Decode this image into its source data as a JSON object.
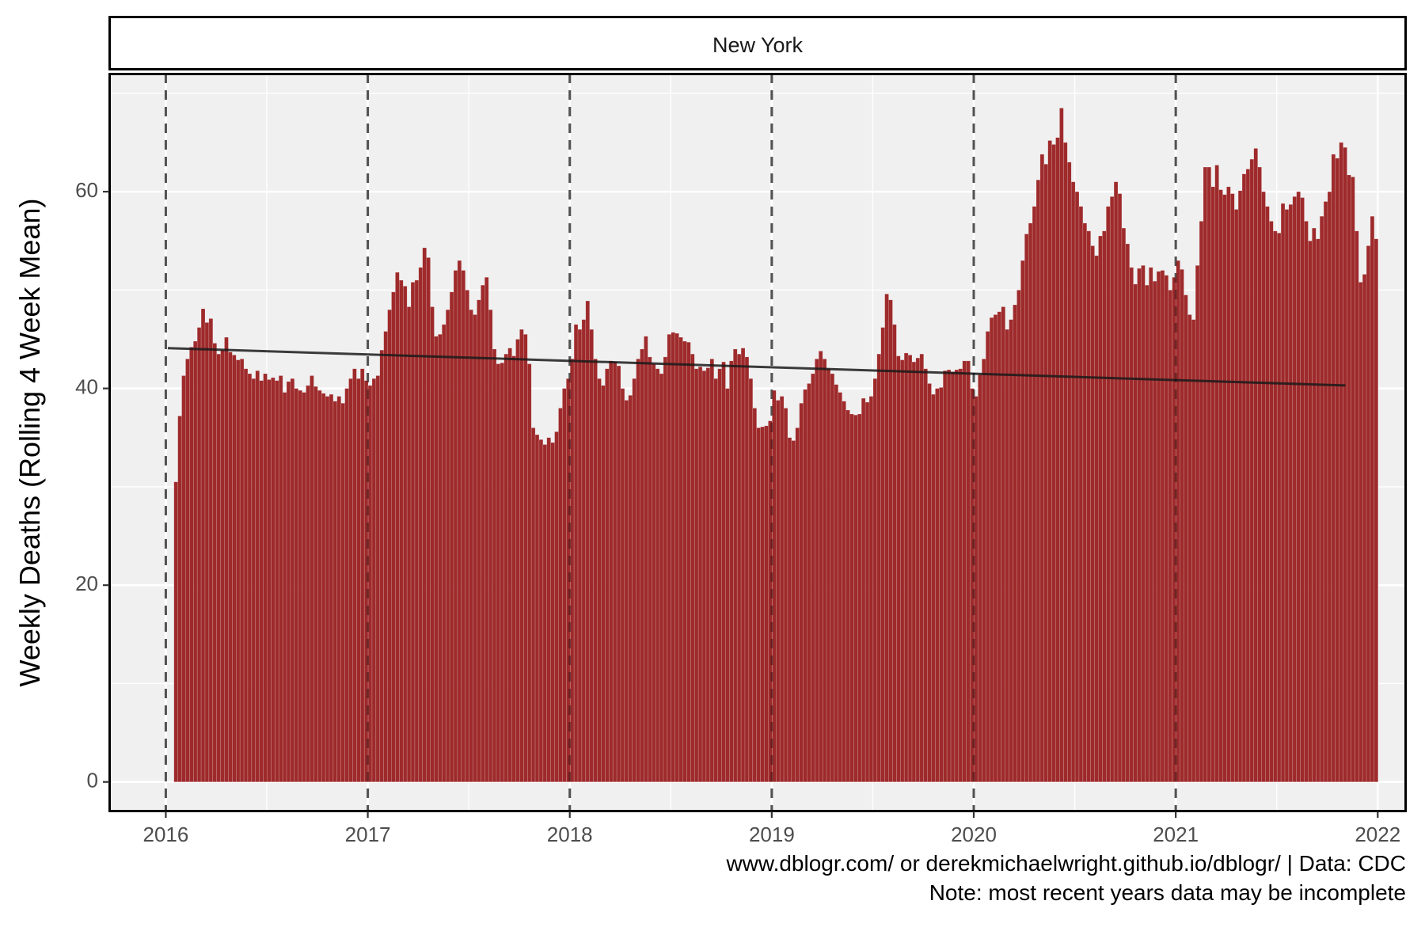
{
  "chart_data": {
    "type": "bar",
    "facet_label": "New York",
    "ylabel": "Weekly Deaths (Rolling 4 Week Mean)",
    "xlabel": "",
    "ylim": [
      -3,
      72
    ],
    "xlim": [
      2015.72,
      2022.14
    ],
    "y_ticks": [
      0,
      20,
      40,
      60
    ],
    "y_tick_labels": [
      "0",
      "20",
      "40",
      "60"
    ],
    "x_ticks": [
      2016,
      2017,
      2018,
      2019,
      2020,
      2021,
      2022
    ],
    "x_tick_labels": [
      "2016",
      "2017",
      "2018",
      "2019",
      "2020",
      "2021",
      "2022"
    ],
    "year_markers": [
      2016,
      2017,
      2018,
      2019,
      2020,
      2021
    ],
    "grid": true,
    "bar_color": "#9e2a2b",
    "panel_background": "#f0f0f0",
    "series": [
      {
        "start": 2016.05,
        "weeks_per_year": 52,
        "values": [
          30.5,
          37.2,
          41.3,
          43.0,
          44.2,
          44.8,
          46.2,
          48.1,
          46.7,
          47.1,
          44.6,
          43.5,
          43.9,
          45.2,
          43.7,
          43.4,
          42.9,
          43.0,
          42.0,
          41.5,
          41.0,
          41.8,
          40.8,
          41.5,
          40.9,
          41.1,
          40.8,
          41.3,
          39.6,
          40.7,
          41.0,
          40.0,
          39.8,
          39.6,
          40.3,
          41.3,
          40.2,
          39.8,
          39.5,
          39.2,
          39.4,
          38.7,
          39.2,
          38.5,
          40.0,
          41.0,
          42.0,
          41.0,
          42.0,
          40.8,
          40.3,
          41.0,
          41.3,
          43.9,
          45.8,
          48.0,
          49.8,
          51.8,
          51.0,
          50.4,
          48.3,
          50.8,
          51.0,
          52.3,
          54.3,
          53.3,
          48.3,
          45.3,
          45.5,
          46.5,
          48.0,
          49.8,
          52.0,
          53.0,
          52.0,
          50.0,
          48.0,
          47.5,
          49.0,
          50.5,
          51.3,
          48.0,
          44.0,
          42.5,
          42.6,
          43.5,
          44.1,
          43.3,
          45.0,
          46.0,
          45.5,
          42.5,
          36.0,
          35.3,
          34.8,
          34.3,
          35.0,
          34.5,
          35.6,
          38.0,
          40.0,
          41.0,
          43.0,
          46.5,
          46.0,
          47.0,
          48.9,
          46.0,
          43.0,
          41.0,
          40.3,
          42.0,
          42.8,
          42.7,
          42.3,
          40.0,
          38.8,
          39.3,
          41.0,
          43.0,
          44.0,
          45.3,
          43.2,
          42.5,
          42.0,
          41.5,
          43.2,
          45.5,
          45.7,
          45.6,
          45.2,
          44.8,
          44.7,
          43.5,
          42.0,
          42.2,
          41.8,
          42.1,
          43.0,
          41.0,
          42.0,
          42.7,
          40.0,
          42.8,
          44.0,
          43.5,
          44.1,
          43.2,
          41.0,
          38.0,
          36.0,
          36.1,
          36.2,
          36.7,
          39.8,
          38.8,
          39.2,
          38.0,
          35.0,
          34.7,
          36.0,
          38.5,
          39.9,
          40.5,
          41.5,
          43.0,
          43.8,
          43.0,
          42.0,
          41.5,
          40.4,
          39.6,
          38.7,
          37.8,
          37.4,
          37.3,
          37.4,
          39.0,
          38.6,
          39.2,
          41.0,
          43.5,
          46.2,
          49.6,
          49.0,
          46.5,
          43.3,
          42.9,
          43.6,
          43.4,
          42.7,
          43.1,
          43.5,
          42.0,
          40.5,
          39.4,
          40.0,
          40.1,
          41.8,
          41.9,
          41.7,
          41.9,
          42.0,
          42.8,
          42.8,
          40.0,
          39.2,
          41.4,
          43.0,
          45.8,
          47.2,
          47.5,
          47.8,
          48.3,
          46.0,
          47.0,
          48.5,
          50.0,
          53.0,
          55.7,
          56.8,
          58.5,
          61.2,
          63.8,
          62.8,
          65.2,
          64.8,
          65.5,
          68.5,
          65.0,
          63.0,
          61.0,
          60.0,
          58.5,
          56.8,
          56.0,
          54.5,
          53.5,
          55.5,
          56.0,
          58.5,
          59.5,
          61.0,
          59.8,
          56.3,
          54.7,
          52.3,
          50.6,
          52.2,
          52.5,
          50.5,
          52.3,
          50.9,
          51.9,
          52.0,
          51.5,
          50.0,
          51.3,
          53.0,
          52.1,
          49.5,
          47.5,
          47.0,
          52.5,
          57.0,
          62.5,
          62.5,
          60.5,
          62.7,
          60.2,
          59.7,
          60.5,
          59.8,
          58.2,
          60.1,
          61.8,
          62.3,
          63.3,
          64.4,
          62.5,
          60.0,
          58.5,
          57.0,
          56.0,
          55.8,
          58.8,
          58.2,
          58.7,
          59.5,
          60.0,
          59.4,
          57.0,
          55.0,
          56.3,
          55.2,
          57.5,
          59.0,
          60.0,
          63.8,
          63.4,
          65.0,
          64.5,
          61.7,
          61.5,
          56.0,
          50.8,
          51.6,
          54.5,
          57.5,
          55.2
        ]
      }
    ],
    "trend_line": {
      "color": "#1a1a1a",
      "points": [
        {
          "x": 2016.01,
          "y": 44.1
        },
        {
          "x": 2021.84,
          "y": 40.3
        }
      ]
    }
  },
  "caption": {
    "line1": "www.dblogr.com/ or derekmichaelwright.github.io/dblogr/ | Data: CDC",
    "line2": "Note: most recent years data may be incomplete"
  }
}
